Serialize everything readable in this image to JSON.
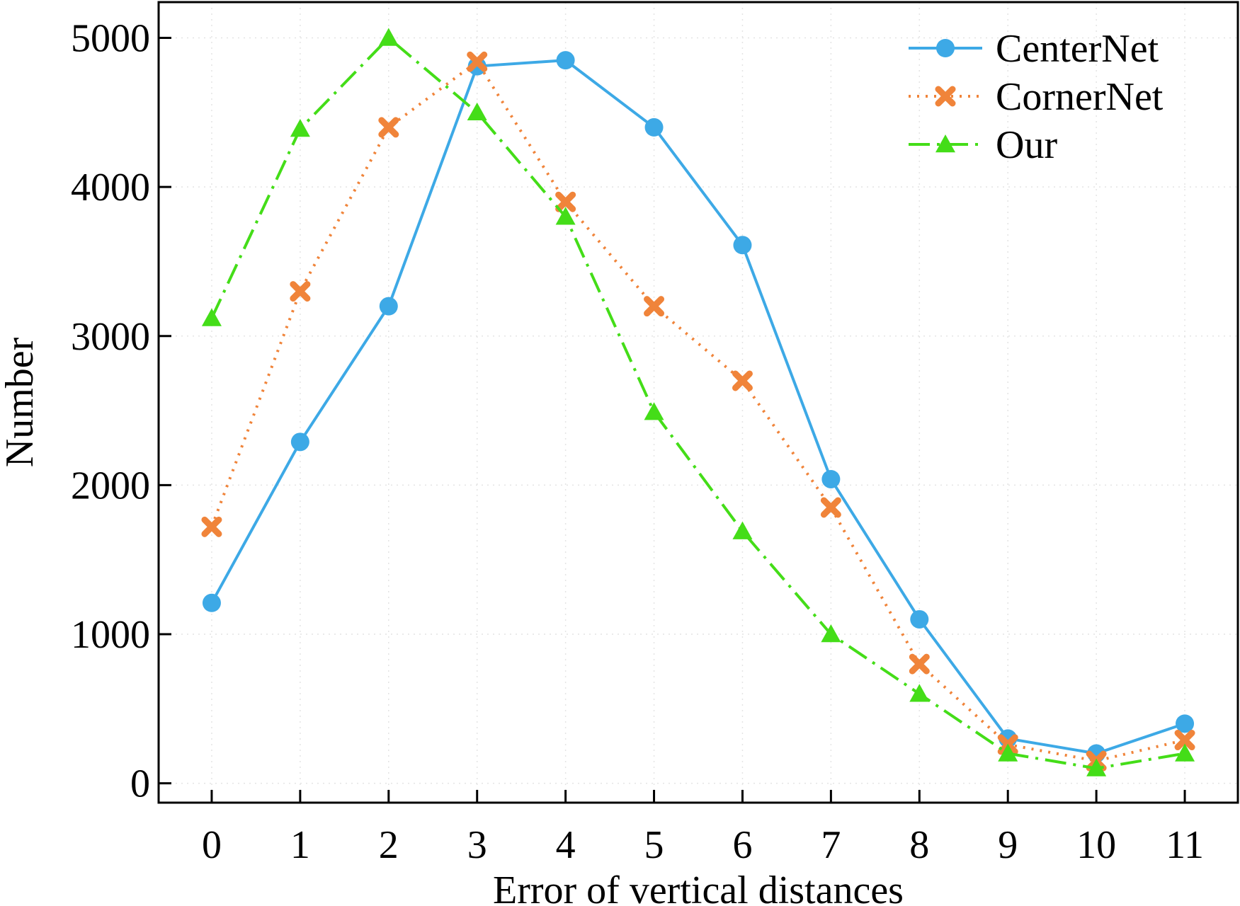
{
  "chart_data": {
    "type": "line",
    "xlabel": "Error of vertical distances",
    "ylabel": "Number",
    "x": [
      0,
      1,
      2,
      3,
      4,
      5,
      6,
      7,
      8,
      9,
      10,
      11
    ],
    "xlim": [
      -0.6,
      11.6
    ],
    "ylim": [
      -130,
      5240
    ],
    "xticks": [
      "0",
      "1",
      "2",
      "3",
      "4",
      "5",
      "6",
      "7",
      "8",
      "9",
      "10",
      "11"
    ],
    "yticks": [
      0,
      1000,
      2000,
      3000,
      4000,
      5000
    ],
    "ytick_labels": [
      "0",
      "1000",
      "2000",
      "3000",
      "4000",
      "5000"
    ],
    "grid": true,
    "legend_position": "top-right",
    "series": [
      {
        "name": "CenterNet",
        "color": "#3da9e6",
        "marker": "circle",
        "line_style": "solid",
        "values": [
          1210,
          2290,
          3200,
          4810,
          4850,
          4400,
          3610,
          2040,
          1100,
          300,
          200,
          400
        ]
      },
      {
        "name": "CornerNet",
        "color": "#f0843a",
        "marker": "x-cross",
        "line_style": "dotted",
        "values": [
          1720,
          3300,
          4400,
          4840,
          3900,
          3200,
          2700,
          1850,
          800,
          260,
          150,
          290
        ]
      },
      {
        "name": "Our",
        "color": "#44dd18",
        "marker": "triangle",
        "line_style": "dash-dot",
        "values": [
          3120,
          4390,
          5000,
          4500,
          3800,
          2490,
          1690,
          1000,
          600,
          200,
          100,
          200
        ]
      }
    ]
  }
}
